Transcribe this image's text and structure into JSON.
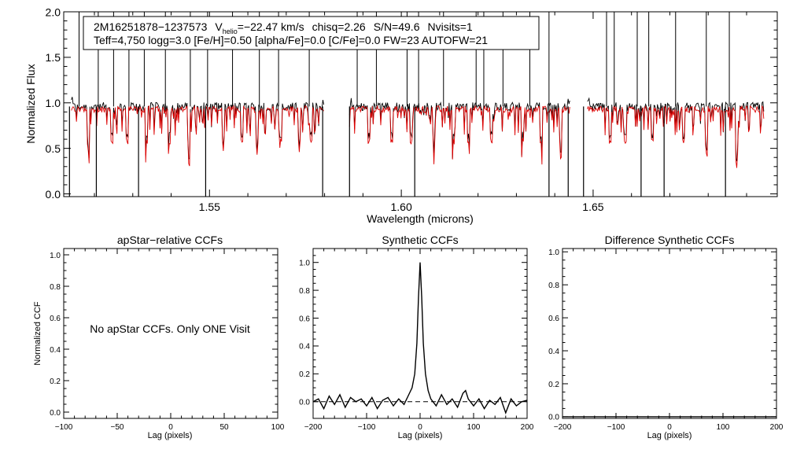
{
  "colors": {
    "observed": "#000000",
    "model": "#dd0000",
    "axis": "#000000",
    "background": "#ffffff"
  },
  "chart_data": [
    {
      "type": "line",
      "panel": "spectrum",
      "title": "",
      "xlabel": "Wavelength (microns)",
      "ylabel": "Normalized Flux",
      "xlim": [
        1.512,
        1.698
      ],
      "ylim": [
        -0.03,
        2.0
      ],
      "x_ticks": [
        "1.55",
        "1.60",
        "1.65"
      ],
      "y_ticks": [
        "0.0",
        "0.5",
        "1.0",
        "1.5",
        "2.0"
      ],
      "info_line1_star": "2M16251878−1237573",
      "info_line1_vhelio_label": "V",
      "info_line1_vhelio_sub": "helio",
      "info_line1_vhelio_value": "=−22.47 km/s",
      "info_line1_chisq": "chisq=2.26",
      "info_line1_sn": "S/N=49.6",
      "info_line1_nvisits": "Nvisits=1",
      "info_line2": "Teff=4,750 logg=3.0 [Fe/H]=0.50 [alpha/Fe]=0.0 [C/Fe]=0.0 FW=23 AUTOFW=21",
      "detector_chips": [
        [
          1.514,
          1.58
        ],
        [
          1.5865,
          1.644
        ],
        [
          1.6485,
          1.6945
        ]
      ],
      "continuum_observed": 0.96,
      "continuum_model": 0.93,
      "spike_wavelengths": [
        1.516,
        1.521,
        1.525,
        1.529,
        1.533,
        1.5385,
        1.545,
        1.5495,
        1.556,
        1.563,
        1.568,
        1.576,
        1.5885,
        1.5935,
        1.6015,
        1.6045,
        1.611,
        1.6195,
        1.6215,
        1.6265,
        1.6335,
        1.6385,
        1.6535,
        1.6555,
        1.6615,
        1.6645,
        1.6715,
        1.6795,
        1.6855
      ],
      "dropout_wavelengths": [
        1.5135,
        1.5205,
        1.5315,
        1.549,
        1.5795,
        1.5865,
        1.6035,
        1.6385,
        1.6435,
        1.6475,
        1.6625,
        1.6685,
        1.6845
      ],
      "deep_line_wavelengths": [
        1.5185,
        1.5245,
        1.5285,
        1.5335,
        1.5395,
        1.5445,
        1.5535,
        1.5585,
        1.5625,
        1.5685,
        1.5735,
        1.5765,
        1.5915,
        1.5975,
        1.6025,
        1.6085,
        1.6135,
        1.6175,
        1.6235,
        1.6315,
        1.6365,
        1.6415,
        1.6545,
        1.6585,
        1.6655,
        1.6735,
        1.6795,
        1.6875
      ]
    },
    {
      "type": "line",
      "panel": "apstar-ccf",
      "title": "apStar−relative CCFs",
      "xlabel": "Lag (pixels)",
      "ylabel": "Normalized CCF",
      "xlim": [
        -100,
        100
      ],
      "ylim": [
        -0.04,
        1.04
      ],
      "x_ticks": [
        "−100",
        "−50",
        "0",
        "50",
        "100"
      ],
      "y_ticks": [
        "0.0",
        "0.2",
        "0.4",
        "0.6",
        "0.8",
        "1.0"
      ],
      "message": "No apStar CCFs.  Only ONE Visit",
      "series": []
    },
    {
      "type": "line",
      "panel": "synthetic-ccf",
      "title": "Synthetic CCFs",
      "xlabel": "Lag (pixels)",
      "ylabel": "",
      "xlim": [
        -200,
        200
      ],
      "ylim": [
        -0.12,
        1.1
      ],
      "x_ticks": [
        "−200",
        "−100",
        "0",
        "100",
        "200"
      ],
      "y_ticks": [
        "0.0",
        "0.2",
        "0.4",
        "0.6",
        "0.8",
        "1.0"
      ],
      "zero_line": 0.0,
      "x": [
        -200,
        -190,
        -180,
        -170,
        -160,
        -150,
        -140,
        -130,
        -120,
        -110,
        -100,
        -90,
        -80,
        -70,
        -60,
        -50,
        -40,
        -30,
        -20,
        -15,
        -10,
        -6,
        -3,
        0,
        3,
        6,
        10,
        15,
        20,
        30,
        40,
        50,
        60,
        70,
        80,
        85,
        90,
        100,
        110,
        120,
        130,
        140,
        150,
        160,
        170,
        180,
        190,
        200
      ],
      "values": [
        0.0,
        0.02,
        -0.05,
        0.04,
        -0.02,
        0.05,
        -0.04,
        0.03,
        0.0,
        0.02,
        -0.03,
        0.03,
        -0.05,
        0.01,
        0.03,
        -0.03,
        0.02,
        -0.02,
        0.06,
        0.1,
        0.2,
        0.42,
        0.75,
        1.0,
        0.75,
        0.42,
        0.2,
        0.08,
        0.02,
        -0.03,
        0.05,
        -0.02,
        0.02,
        -0.04,
        0.06,
        0.08,
        0.02,
        -0.03,
        0.02,
        -0.05,
        0.01,
        -0.02,
        0.03,
        -0.08,
        0.02,
        -0.03,
        0.0,
        0.01
      ]
    },
    {
      "type": "line",
      "panel": "difference-ccf",
      "title": "Difference Synthetic CCFs",
      "xlabel": "Lag (pixels)",
      "ylabel": "",
      "xlim": [
        -200,
        200
      ],
      "ylim": [
        -0.01,
        1.02
      ],
      "x_ticks": [
        "−200",
        "−100",
        "0",
        "100",
        "200"
      ],
      "y_ticks": [
        "0.0",
        "0.2",
        "0.4",
        "0.6",
        "0.8",
        "1.0"
      ],
      "x": [
        -200,
        200
      ],
      "values": [
        0.0,
        0.0
      ]
    }
  ]
}
